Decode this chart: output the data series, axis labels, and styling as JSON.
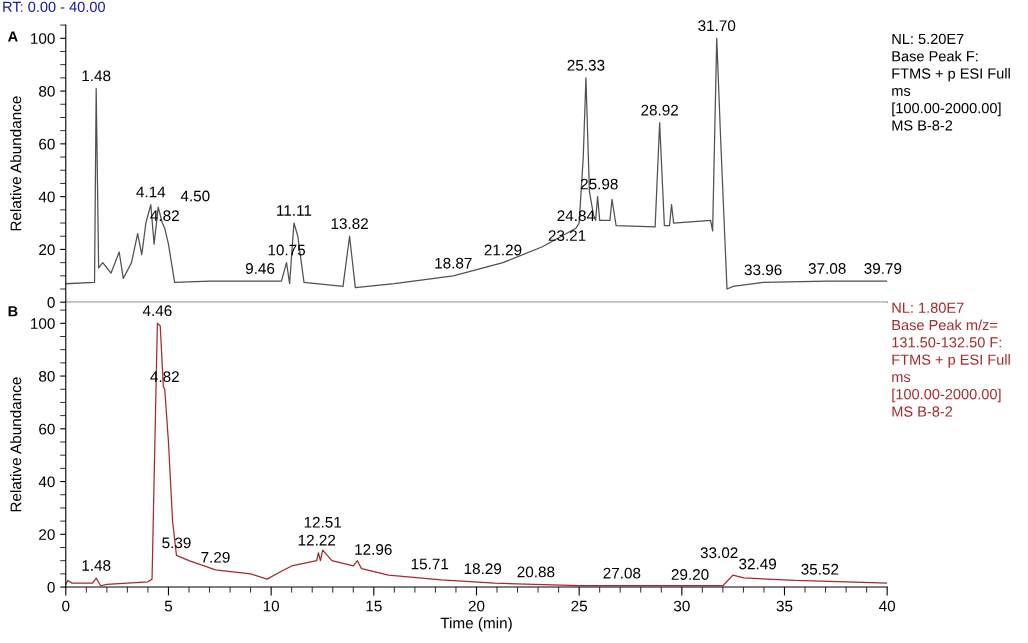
{
  "chart_data": [
    {
      "type": "line",
      "ylabel": "Relative Abundance",
      "xlim": [
        0,
        40
      ],
      "ylim": [
        0,
        105
      ],
      "yticks": [
        0,
        20,
        40,
        60,
        80,
        100
      ],
      "xticks": [
        0,
        5,
        10,
        15,
        20,
        25,
        30,
        35,
        40
      ],
      "tick_labels": "y",
      "series": [
        {
          "color": "#505050",
          "x": [
            0,
            1.4,
            1.48,
            1.6,
            1.8,
            2.2,
            2.6,
            2.8,
            3.2,
            3.5,
            3.7,
            3.9,
            4.14,
            4.3,
            4.5,
            4.7,
            4.82,
            5.0,
            5.3,
            7,
            9.46,
            10.5,
            10.75,
            10.9,
            11.11,
            11.3,
            11.6,
            13.5,
            13.82,
            14.1,
            16,
            18.87,
            21.29,
            23.21,
            24.84,
            25.0,
            25.2,
            25.33,
            25.5,
            25.7,
            25.8,
            25.9,
            26.0,
            26.5,
            26.6,
            26.8,
            28.7,
            28.92,
            29.15,
            29.4,
            29.5,
            29.6,
            31.4,
            31.5,
            31.7,
            31.9,
            32.2,
            32.5,
            33.96,
            37.08,
            39.79,
            40
          ],
          "values": [
            7,
            7.5,
            81,
            13,
            15,
            11,
            19,
            9,
            15,
            26,
            18,
            30,
            37,
            22,
            36,
            30,
            28,
            22,
            7.5,
            8,
            8,
            8,
            15,
            7,
            30,
            25,
            7.5,
            6,
            25,
            5.5,
            7,
            10,
            15,
            21,
            28,
            30,
            55,
            85,
            42,
            33,
            31,
            40,
            31,
            31,
            39,
            29,
            28.5,
            68,
            29,
            29,
            37,
            30,
            31,
            27,
            100,
            60,
            5,
            6,
            7.5,
            8,
            8,
            8
          ]
        }
      ],
      "annotations": [
        "RT: 0.00 - 40.00",
        "A",
        "NL: 5.20E7\nBase Peak F:\nFTMS + p ESI Full\nms\n[100.00-2000.00]\nMS B-8-2",
        {
          "text": "1.48",
          "x": 1.48,
          "y": 81
        },
        {
          "text": "4.14",
          "x": 4.14,
          "y": 37
        },
        {
          "text": "4.50",
          "x": 4.5,
          "y": 36
        },
        {
          "text": "4.82",
          "x": 4.82,
          "y": 28
        },
        {
          "text": "9.46",
          "x": 9.46,
          "y": 8
        },
        {
          "text": "10.75",
          "x": 10.75,
          "y": 15
        },
        {
          "text": "11.11",
          "x": 11.11,
          "y": 30
        },
        {
          "text": "13.82",
          "x": 13.82,
          "y": 25
        },
        {
          "text": "18.87",
          "x": 18.87,
          "y": 10
        },
        {
          "text": "21.29",
          "x": 21.29,
          "y": 15
        },
        {
          "text": "23.21",
          "x": 23.21,
          "y": 21
        },
        {
          "text": "24.84",
          "x": 24.84,
          "y": 28
        },
        {
          "text": "25.33",
          "x": 25.33,
          "y": 85
        },
        {
          "text": "25.98",
          "x": 25.98,
          "y": 40
        },
        {
          "text": "28.92",
          "x": 28.92,
          "y": 68
        },
        {
          "text": "31.70",
          "x": 31.7,
          "y": 100
        },
        {
          "text": "33.96",
          "x": 33.96,
          "y": 7.5
        },
        {
          "text": "37.08",
          "x": 37.08,
          "y": 8
        },
        {
          "text": "39.79",
          "x": 39.79,
          "y": 8
        }
      ]
    },
    {
      "type": "line",
      "xlabel": "Time (min)",
      "ylabel": "Relative Abundance",
      "xlim": [
        0,
        40
      ],
      "ylim": [
        0,
        108
      ],
      "yticks": [
        0,
        20,
        40,
        60,
        80,
        100
      ],
      "xticks": [
        0,
        5,
        10,
        15,
        20,
        25,
        30,
        35,
        40
      ],
      "series": [
        {
          "color": "#a52a2a",
          "x": [
            0,
            0.1,
            0.3,
            1.3,
            1.48,
            1.7,
            2,
            4,
            4.2,
            4.46,
            4.6,
            4.75,
            4.82,
            5.0,
            5.2,
            5.39,
            6,
            7.29,
            9,
            9.8,
            10.5,
            11,
            12.22,
            12.3,
            12.4,
            12.51,
            12.96,
            14,
            14.2,
            14.4,
            15.71,
            18.29,
            20.88,
            25,
            27.08,
            29.2,
            32,
            32.49,
            33.02,
            35.52,
            38,
            40
          ],
          "values": [
            1,
            2.5,
            1.5,
            1.5,
            3.4,
            0.5,
            1,
            2,
            3,
            100,
            99,
            76,
            75,
            55,
            25,
            12,
            10,
            6.5,
            5,
            3,
            6,
            8,
            10,
            13,
            10,
            14,
            10,
            8,
            10,
            7,
            4.5,
            2.7,
            1.5,
            0.5,
            0.5,
            0.5,
            0.5,
            4.5,
            3.5,
            2.5,
            2,
            1.5
          ]
        }
      ],
      "annotations": [
        "B",
        "NL: 1.80E7\nBase Peak m/z=\n131.50-132.50 F:\nFTMS + p ESI Full\nms\n[100.00-2000.00]\nMS B-8-2",
        {
          "text": "1.48",
          "x": 1.48,
          "y": 3.4
        },
        {
          "text": "4.46",
          "x": 4.46,
          "y": 100
        },
        {
          "text": "4.82",
          "x": 4.82,
          "y": 75
        },
        {
          "text": "5.39",
          "x": 5.39,
          "y": 12
        },
        {
          "text": "7.29",
          "x": 7.29,
          "y": 6.5
        },
        {
          "text": "12.22",
          "x": 12.22,
          "y": 13
        },
        {
          "text": "12.51",
          "x": 12.51,
          "y": 14
        },
        {
          "text": "12.96",
          "x": 12.96,
          "y": 10
        },
        {
          "text": "15.71",
          "x": 15.71,
          "y": 4.5
        },
        {
          "text": "18.29",
          "x": 18.29,
          "y": 2.7
        },
        {
          "text": "20.88",
          "x": 20.88,
          "y": 1.5
        },
        {
          "text": "27.08",
          "x": 27.08,
          "y": 0.5
        },
        {
          "text": "29.20",
          "x": 29.2,
          "y": 0.5
        },
        {
          "text": "32.49",
          "x": 32.49,
          "y": 4.5
        },
        {
          "text": "33.02",
          "x": 33.02,
          "y": 3.5
        },
        {
          "text": "35.52",
          "x": 35.52,
          "y": 2.5
        }
      ]
    }
  ]
}
